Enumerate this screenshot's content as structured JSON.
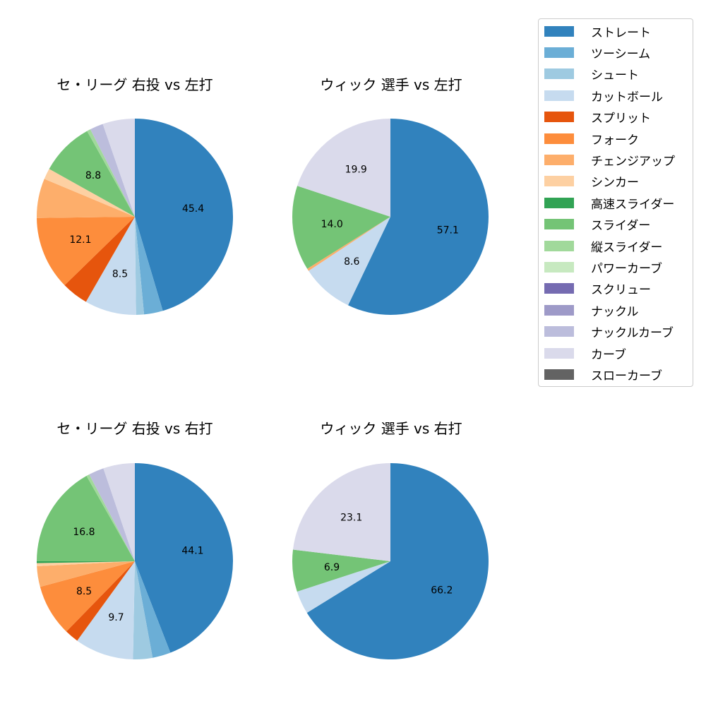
{
  "chart_data": [
    {
      "type": "pie",
      "title": "セ・リーグ 右投 vs 左打",
      "categories": [
        "ストレート",
        "ツーシーム",
        "シュート",
        "カットボール",
        "スプリット",
        "フォーク",
        "チェンジアップ",
        "シンカー",
        "スライダー",
        "縦スライダー",
        "ナックルカーブ",
        "カーブ"
      ],
      "values": [
        45.4,
        3.1,
        1.3,
        8.5,
        4.4,
        12.1,
        6.5,
        1.8,
        8.8,
        0.6,
        2.2,
        5.3
      ],
      "labels_shown": [
        "45.4",
        "",
        "",
        "8.5",
        "",
        "12.1",
        "",
        "",
        "8.8",
        "",
        "",
        ""
      ],
      "start_angle": 90,
      "direction": "clockwise"
    },
    {
      "type": "pie",
      "title": "ウィック 選手 vs 左打",
      "categories": [
        "ストレート",
        "カットボール",
        "チェンジアップ",
        "スライダー",
        "カーブ"
      ],
      "values": [
        57.1,
        8.6,
        0.4,
        14.0,
        19.9
      ],
      "labels_shown": [
        "57.1",
        "8.6",
        "",
        "14.0",
        "19.9"
      ],
      "start_angle": 90,
      "direction": "clockwise"
    },
    {
      "type": "pie",
      "title": "セ・リーグ 右投 vs 右打",
      "categories": [
        "ストレート",
        "ツーシーム",
        "シュート",
        "カットボール",
        "スプリット",
        "フォーク",
        "チェンジアップ",
        "シンカー",
        "高速スライダー",
        "スライダー",
        "縦スライダー",
        "ナックルカーブ",
        "カーブ"
      ],
      "values": [
        44.1,
        3.0,
        3.2,
        9.7,
        2.3,
        8.5,
        3.4,
        0.5,
        0.3,
        16.8,
        0.5,
        2.5,
        5.2
      ],
      "labels_shown": [
        "44.1",
        "",
        "",
        "9.7",
        "",
        "8.5",
        "",
        "",
        "",
        "16.8",
        "",
        "",
        ""
      ],
      "start_angle": 90,
      "direction": "clockwise"
    },
    {
      "type": "pie",
      "title": "ウィック 選手 vs 右打",
      "categories": [
        "ストレート",
        "カットボール",
        "スライダー",
        "カーブ"
      ],
      "values": [
        66.2,
        3.8,
        6.9,
        23.1
      ],
      "labels_shown": [
        "66.2",
        "",
        "6.9",
        "23.1"
      ],
      "start_angle": 90,
      "direction": "clockwise"
    }
  ],
  "legend": {
    "items": [
      {
        "label": "ストレート",
        "color": "#3182bd"
      },
      {
        "label": "ツーシーム",
        "color": "#6baed6"
      },
      {
        "label": "シュート",
        "color": "#9ecae1"
      },
      {
        "label": "カットボール",
        "color": "#c6dbef"
      },
      {
        "label": "スプリット",
        "color": "#e6550d"
      },
      {
        "label": "フォーク",
        "color": "#fd8d3c"
      },
      {
        "label": "チェンジアップ",
        "color": "#fdae6b"
      },
      {
        "label": "シンカー",
        "color": "#fdd0a2"
      },
      {
        "label": "高速スライダー",
        "color": "#31a354"
      },
      {
        "label": "スライダー",
        "color": "#74c476"
      },
      {
        "label": "縦スライダー",
        "color": "#a1d99b"
      },
      {
        "label": "パワーカーブ",
        "color": "#c7e9c0"
      },
      {
        "label": "スクリュー",
        "color": "#756bb1"
      },
      {
        "label": "ナックル",
        "color": "#9e9ac8"
      },
      {
        "label": "ナックルカーブ",
        "color": "#bcbddc"
      },
      {
        "label": "カーブ",
        "color": "#dadaeb"
      },
      {
        "label": "スローカーブ",
        "color": "#636363"
      }
    ]
  }
}
